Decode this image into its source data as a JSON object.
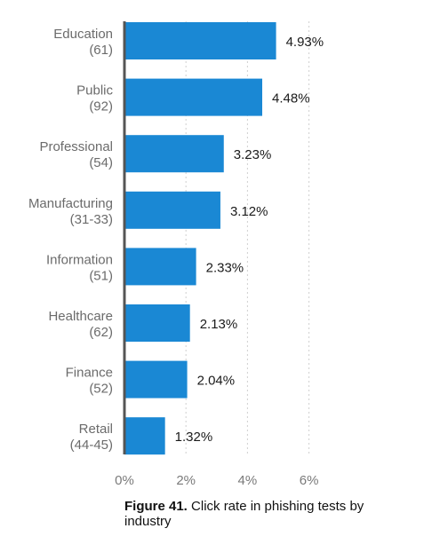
{
  "chart_data": {
    "type": "bar",
    "orientation": "horizontal",
    "categories": [
      {
        "name": "Education",
        "code": "(61)"
      },
      {
        "name": "Public",
        "code": "(92)"
      },
      {
        "name": "Professional",
        "code": "(54)"
      },
      {
        "name": "Manufacturing",
        "code": "(31-33)"
      },
      {
        "name": "Information",
        "code": "(51)"
      },
      {
        "name": "Healthcare",
        "code": "(62)"
      },
      {
        "name": "Finance",
        "code": "(52)"
      },
      {
        "name": "Retail",
        "code": "(44-45)"
      }
    ],
    "values": [
      4.93,
      4.48,
      3.23,
      3.12,
      2.33,
      2.13,
      2.04,
      1.32
    ],
    "value_labels": [
      "4.93%",
      "4.48%",
      "3.23%",
      "3.12%",
      "2.33%",
      "2.13%",
      "2.04%",
      "1.32%"
    ],
    "xlim": [
      0,
      6
    ],
    "xticks": [
      0,
      2,
      4,
      6
    ],
    "xtick_labels": [
      "0%",
      "2%",
      "4%",
      "6%"
    ],
    "grid": "vertical dashed",
    "bar_color": "#1a88d4",
    "axis_color": "#555555",
    "grid_color": "#d0d0d0"
  },
  "caption": {
    "bold": "Figure 41.",
    "text": " Click rate in phishing tests by industry"
  }
}
